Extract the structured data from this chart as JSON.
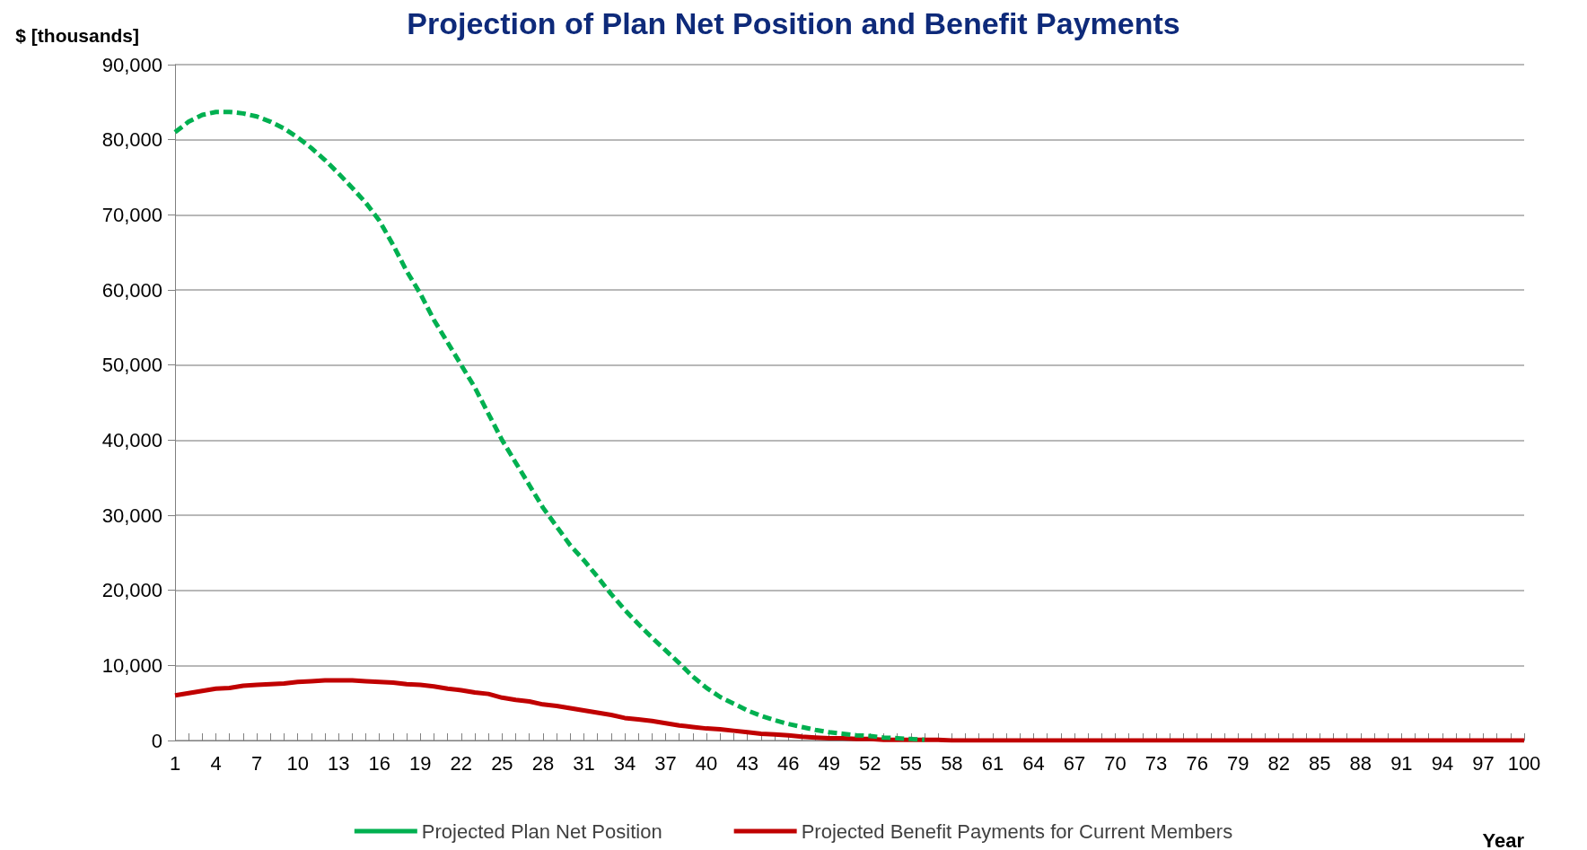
{
  "chart_data": {
    "type": "line",
    "title": "Projection of Plan Net Position and Benefit Payments",
    "ylabel": "$ [thousands]",
    "xlabel": "Year",
    "categories": [
      "1",
      null,
      null,
      "4",
      null,
      null,
      "7",
      null,
      null,
      "10",
      null,
      null,
      "13",
      null,
      null,
      "16",
      null,
      null,
      "19",
      null,
      null,
      "22",
      null,
      null,
      "25",
      null,
      null,
      "28",
      null,
      null,
      "31",
      null,
      null,
      "34",
      null,
      null,
      "37",
      null,
      null,
      "40",
      null,
      null,
      "43",
      null,
      null,
      "46",
      null,
      null,
      "49",
      null,
      null,
      "52",
      null,
      null,
      "55",
      null,
      null,
      "58",
      null,
      null,
      "61",
      null,
      null,
      "64",
      null,
      null,
      "67",
      null,
      null,
      "70",
      null,
      null,
      "73",
      null,
      null,
      "76",
      null,
      null,
      "79",
      null,
      null,
      "82",
      null,
      null,
      "85",
      null,
      null,
      "88",
      null,
      null,
      "91",
      null,
      null,
      "94",
      null,
      null,
      "97",
      null,
      null,
      "100"
    ],
    "series": [
      {
        "name": "Projected Plan Net Position",
        "color": "#00b050",
        "line_style": "dashed",
        "values": [
          81000,
          82400,
          83300,
          83700,
          83700,
          83500,
          83100,
          82400,
          81500,
          80300,
          78900,
          77300,
          75500,
          73600,
          71600,
          69200,
          66000,
          62500,
          59500,
          56000,
          53000,
          50000,
          47000,
          43500,
          40000,
          37000,
          34000,
          31000,
          28500,
          26000,
          24000,
          21800,
          19500,
          17400,
          15500,
          13700,
          12000,
          10300,
          8500,
          7000,
          5800,
          4900,
          4000,
          3300,
          2700,
          2200,
          1800,
          1400,
          1100,
          900,
          700,
          600,
          400,
          300,
          200,
          100,
          null,
          null,
          null,
          null,
          null,
          null,
          null,
          null,
          null,
          null,
          null,
          null,
          null,
          null,
          null,
          null,
          null,
          null,
          null,
          null,
          null,
          null,
          null,
          null,
          null,
          null,
          null,
          null,
          null,
          null,
          null,
          null,
          null,
          null,
          null,
          null,
          null,
          null,
          null,
          null,
          null,
          null,
          null,
          null
        ]
      },
      {
        "name": "Projected Benefit Payments for Current Members",
        "color": "#c00000",
        "line_style": "solid",
        "values": [
          6000,
          6300,
          6600,
          6900,
          7000,
          7300,
          7400,
          7500,
          7600,
          7800,
          7900,
          8000,
          8000,
          8000,
          7900,
          7800,
          7700,
          7500,
          7400,
          7200,
          6900,
          6700,
          6400,
          6200,
          5700,
          5400,
          5200,
          4800,
          4600,
          4300,
          4000,
          3700,
          3400,
          3000,
          2800,
          2600,
          2300,
          2000,
          1800,
          1600,
          1500,
          1300,
          1100,
          900,
          800,
          700,
          500,
          400,
          300,
          300,
          200,
          200,
          100,
          100,
          100,
          100,
          100,
          0,
          0,
          0,
          0,
          0,
          0,
          0,
          0,
          0,
          0,
          0,
          0,
          0,
          0,
          0,
          0,
          0,
          0,
          0,
          0,
          0,
          0,
          0,
          0,
          0,
          0,
          0,
          0,
          0,
          0,
          0,
          0,
          0,
          0,
          0,
          0,
          0,
          0,
          0,
          0,
          0,
          0,
          0
        ]
      }
    ],
    "ylim": [
      0,
      90000
    ],
    "yticks": [
      0,
      {
        "value": 10000,
        "label": "10,000"
      },
      {
        "value": 20000,
        "label": "20,000"
      },
      {
        "value": 30000,
        "label": "30,000"
      },
      {
        "value": 40000,
        "label": "40,000"
      },
      {
        "value": 50000,
        "label": "50,000"
      },
      {
        "value": 60000,
        "label": "60,000"
      },
      {
        "value": 70000,
        "label": "70,000"
      },
      {
        "value": 80000,
        "label": "80,000"
      },
      {
        "value": 90000,
        "label": "90,000"
      }
    ],
    "grid": "y",
    "legend": "bottom",
    "marker": "none"
  }
}
